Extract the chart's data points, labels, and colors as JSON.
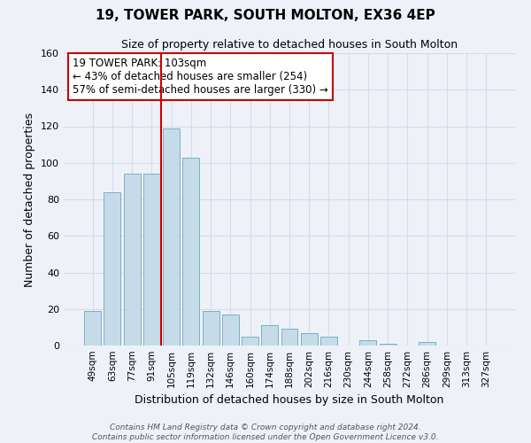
{
  "title": "19, TOWER PARK, SOUTH MOLTON, EX36 4EP",
  "subtitle": "Size of property relative to detached houses in South Molton",
  "xlabel": "Distribution of detached houses by size in South Molton",
  "ylabel": "Number of detached properties",
  "bar_labels": [
    "49sqm",
    "63sqm",
    "77sqm",
    "91sqm",
    "105sqm",
    "119sqm",
    "132sqm",
    "146sqm",
    "160sqm",
    "174sqm",
    "188sqm",
    "202sqm",
    "216sqm",
    "230sqm",
    "244sqm",
    "258sqm",
    "272sqm",
    "286sqm",
    "299sqm",
    "313sqm",
    "327sqm"
  ],
  "bar_values": [
    19,
    84,
    94,
    94,
    119,
    103,
    19,
    17,
    5,
    11,
    9,
    7,
    5,
    0,
    3,
    1,
    0,
    2,
    0,
    0,
    0
  ],
  "bar_color": "#c5dce8",
  "bar_edge_color": "#7aafc8",
  "grid_color": "#d4dde8",
  "background_color": "#eef2f8",
  "ylim": [
    0,
    160
  ],
  "yticks": [
    0,
    20,
    40,
    60,
    80,
    100,
    120,
    140,
    160
  ],
  "property_line_color": "#cc0000",
  "annotation_title": "19 TOWER PARK: 103sqm",
  "annotation_line1": "← 43% of detached houses are smaller (254)",
  "annotation_line2": "57% of semi-detached houses are larger (330) →",
  "annotation_box_color": "#ffffff",
  "annotation_box_edge": "#cc0000",
  "footer_line1": "Contains HM Land Registry data © Crown copyright and database right 2024.",
  "footer_line2": "Contains public sector information licensed under the Open Government Licence v3.0."
}
